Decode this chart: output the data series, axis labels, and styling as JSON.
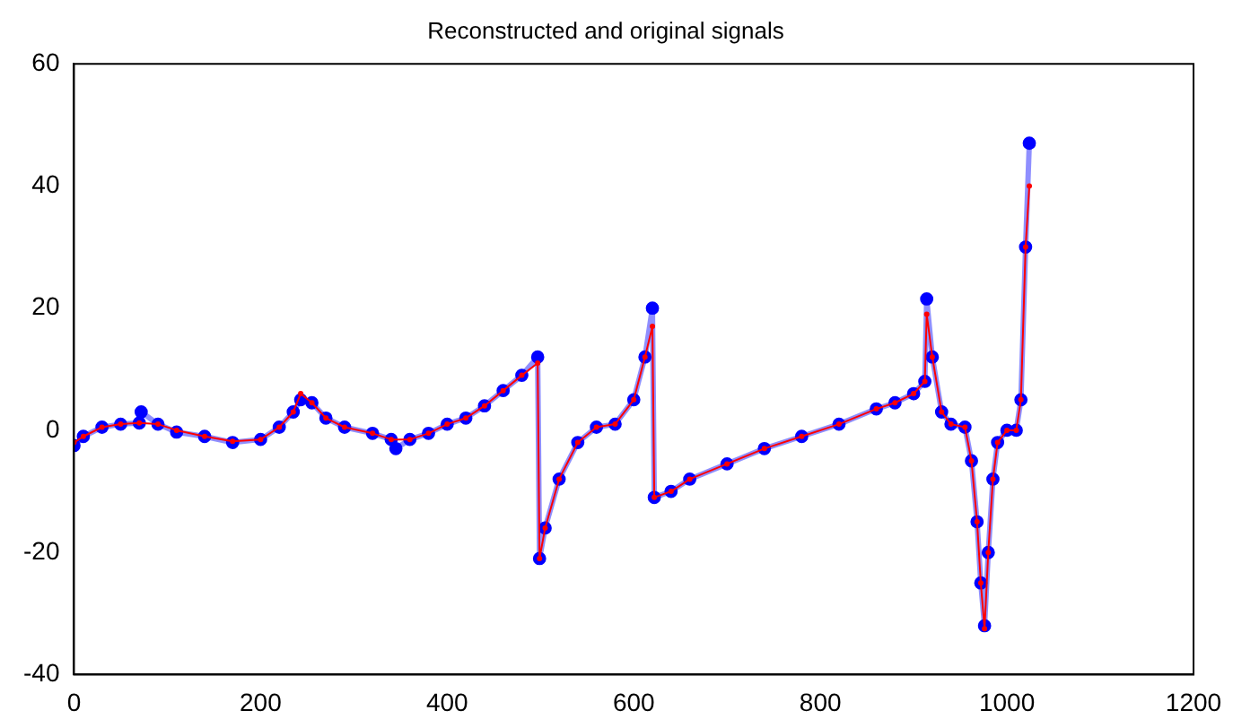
{
  "chart_data": {
    "type": "line",
    "title": "Reconstructed and original signals",
    "xlim": [
      0,
      1200
    ],
    "xticks": [
      0,
      200,
      400,
      600,
      800,
      1000,
      1200
    ],
    "ylim": [
      -40,
      60
    ],
    "yticks": [
      -40,
      -20,
      0,
      20,
      40,
      60
    ],
    "grid": false,
    "legend": false,
    "marker": "circle",
    "line_style": "solid",
    "series": [
      {
        "color": "#0000ff",
        "x": [
          0,
          10,
          30,
          50,
          70,
          72,
          90,
          110,
          140,
          170,
          200,
          220,
          235,
          243,
          255,
          270,
          290,
          320,
          340,
          345,
          360,
          380,
          400,
          420,
          440,
          460,
          480,
          497,
          499,
          505,
          520,
          540,
          560,
          580,
          600,
          612,
          620,
          622,
          640,
          660,
          700,
          740,
          780,
          820,
          860,
          880,
          900,
          912,
          914,
          920,
          930,
          940,
          955,
          962,
          968,
          972,
          976,
          980,
          985,
          990,
          1000,
          1010,
          1015,
          1020,
          1024
        ],
        "values": [
          -2.5,
          -1,
          0.5,
          1,
          1.2,
          3,
          1,
          -0.3,
          -1,
          -2,
          -1.5,
          0.5,
          3,
          5,
          4.5,
          2,
          0.5,
          -0.5,
          -1.5,
          -3,
          -1.5,
          -0.5,
          1,
          2,
          4,
          6.5,
          9,
          12,
          -21,
          -16,
          -8,
          -2,
          0.5,
          1,
          5,
          12,
          20,
          -11,
          -10,
          -8,
          -5.5,
          -3,
          -1,
          1,
          3.5,
          4.5,
          6,
          8,
          21.5,
          12,
          3,
          1,
          0.5,
          -5,
          -15,
          -25,
          -32,
          -20,
          -8,
          -2,
          0,
          0,
          5,
          30,
          47
        ]
      },
      {
        "color": "#ff0000",
        "x": [
          0,
          10,
          30,
          50,
          70,
          90,
          110,
          140,
          170,
          200,
          220,
          235,
          243,
          255,
          270,
          290,
          320,
          340,
          360,
          380,
          400,
          420,
          440,
          460,
          480,
          497,
          499,
          505,
          520,
          540,
          560,
          580,
          600,
          612,
          620,
          622,
          640,
          660,
          700,
          740,
          780,
          820,
          860,
          880,
          900,
          912,
          914,
          920,
          930,
          940,
          955,
          962,
          968,
          972,
          976,
          980,
          985,
          990,
          1000,
          1010,
          1015,
          1020,
          1024
        ],
        "values": [
          -2,
          -1,
          0.5,
          1,
          1.2,
          1,
          0,
          -1,
          -1.8,
          -1.5,
          0.5,
          3,
          6,
          4.5,
          2,
          0.5,
          -0.5,
          -1.5,
          -1.5,
          -0.5,
          1,
          2,
          4,
          6.5,
          9,
          11,
          -21,
          -16,
          -8,
          -2,
          0.5,
          1,
          5,
          12,
          17,
          -11,
          -10,
          -8,
          -5.5,
          -3,
          -1,
          1,
          3.5,
          4.5,
          6,
          8,
          19,
          12,
          3,
          1,
          0.5,
          -5,
          -15,
          -25,
          -32.5,
          -20,
          -8,
          -2,
          0,
          0,
          5,
          30,
          40
        ]
      }
    ]
  }
}
